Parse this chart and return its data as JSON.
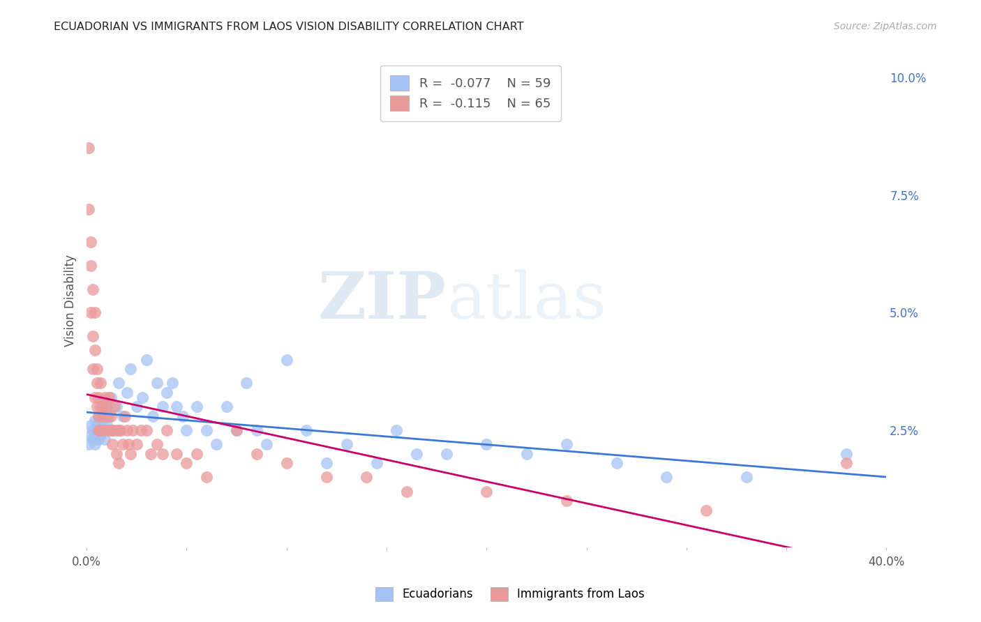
{
  "title": "ECUADORIAN VS IMMIGRANTS FROM LAOS VISION DISABILITY CORRELATION CHART",
  "source": "Source: ZipAtlas.com",
  "ylabel": "Vision Disability",
  "xlim": [
    0.0,
    0.4
  ],
  "ylim": [
    0.0,
    0.105
  ],
  "background_color": "#ffffff",
  "grid_color": "#cccccc",
  "watermark": "ZIPatlas",
  "blue_color": "#a4c2f4",
  "pink_color": "#ea9999",
  "blue_line_color": "#3c78d8",
  "pink_line_color": "#cc0066",
  "legend_R_blue": "-0.077",
  "legend_N_blue": "59",
  "legend_R_pink": "-0.115",
  "legend_N_pink": "65",
  "blue_scatter_x": [
    0.001,
    0.002,
    0.002,
    0.003,
    0.003,
    0.004,
    0.004,
    0.005,
    0.005,
    0.006,
    0.006,
    0.007,
    0.007,
    0.008,
    0.009,
    0.01,
    0.01,
    0.011,
    0.012,
    0.013,
    0.015,
    0.016,
    0.018,
    0.02,
    0.022,
    0.025,
    0.028,
    0.03,
    0.033,
    0.035,
    0.038,
    0.04,
    0.043,
    0.045,
    0.048,
    0.05,
    0.055,
    0.06,
    0.065,
    0.07,
    0.075,
    0.08,
    0.085,
    0.09,
    0.1,
    0.11,
    0.12,
    0.13,
    0.145,
    0.155,
    0.165,
    0.18,
    0.2,
    0.22,
    0.24,
    0.265,
    0.29,
    0.33,
    0.38
  ],
  "blue_scatter_y": [
    0.022,
    0.024,
    0.026,
    0.023,
    0.025,
    0.022,
    0.027,
    0.024,
    0.026,
    0.023,
    0.028,
    0.025,
    0.024,
    0.027,
    0.023,
    0.026,
    0.03,
    0.028,
    0.032,
    0.025,
    0.03,
    0.035,
    0.028,
    0.033,
    0.038,
    0.03,
    0.032,
    0.04,
    0.028,
    0.035,
    0.03,
    0.033,
    0.035,
    0.03,
    0.028,
    0.025,
    0.03,
    0.025,
    0.022,
    0.03,
    0.025,
    0.035,
    0.025,
    0.022,
    0.04,
    0.025,
    0.018,
    0.022,
    0.018,
    0.025,
    0.02,
    0.02,
    0.022,
    0.02,
    0.022,
    0.018,
    0.015,
    0.015,
    0.02
  ],
  "pink_scatter_x": [
    0.001,
    0.001,
    0.002,
    0.002,
    0.002,
    0.003,
    0.003,
    0.003,
    0.004,
    0.004,
    0.004,
    0.005,
    0.005,
    0.005,
    0.006,
    0.006,
    0.006,
    0.007,
    0.007,
    0.007,
    0.008,
    0.008,
    0.009,
    0.009,
    0.01,
    0.01,
    0.011,
    0.011,
    0.012,
    0.012,
    0.013,
    0.013,
    0.014,
    0.015,
    0.015,
    0.016,
    0.016,
    0.017,
    0.018,
    0.019,
    0.02,
    0.021,
    0.022,
    0.023,
    0.025,
    0.027,
    0.03,
    0.032,
    0.035,
    0.038,
    0.04,
    0.045,
    0.05,
    0.055,
    0.06,
    0.075,
    0.085,
    0.1,
    0.12,
    0.14,
    0.16,
    0.2,
    0.24,
    0.31,
    0.38
  ],
  "pink_scatter_y": [
    0.085,
    0.072,
    0.06,
    0.05,
    0.065,
    0.045,
    0.055,
    0.038,
    0.042,
    0.05,
    0.032,
    0.038,
    0.03,
    0.035,
    0.028,
    0.032,
    0.025,
    0.03,
    0.025,
    0.035,
    0.03,
    0.028,
    0.025,
    0.032,
    0.028,
    0.03,
    0.025,
    0.032,
    0.025,
    0.028,
    0.025,
    0.022,
    0.03,
    0.025,
    0.02,
    0.025,
    0.018,
    0.025,
    0.022,
    0.028,
    0.025,
    0.022,
    0.02,
    0.025,
    0.022,
    0.025,
    0.025,
    0.02,
    0.022,
    0.02,
    0.025,
    0.02,
    0.018,
    0.02,
    0.015,
    0.025,
    0.02,
    0.018,
    0.015,
    0.015,
    0.012,
    0.012,
    0.01,
    0.008,
    0.018
  ]
}
